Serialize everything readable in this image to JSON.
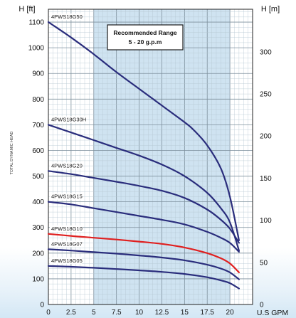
{
  "chart_data": {
    "type": "line",
    "left_axis_unit": "H [ft]",
    "right_axis_unit": "H [m]",
    "x_axis_unit": "U.S GPM",
    "ylabel": "TOTAL DYNAMIC HEAD",
    "xlim": [
      0,
      22.5
    ],
    "ylim_ft": [
      0,
      1150
    ],
    "ylim_m": [
      0,
      350.52
    ],
    "x_ticks": [
      0,
      2.5,
      5,
      7.5,
      10,
      12.5,
      15,
      17.5,
      20
    ],
    "x_tick_labels": [
      "0",
      "2.5",
      "5",
      "7.5",
      "10",
      "12.5",
      "15",
      "17.5",
      "20"
    ],
    "y_ticks_ft": [
      0,
      100,
      200,
      300,
      400,
      500,
      600,
      700,
      800,
      900,
      1000,
      1100
    ],
    "y_tick_labels_ft": [
      "0",
      "100",
      "200",
      "300",
      "400",
      "500",
      "600",
      "700",
      "800",
      "900",
      "1000",
      "1100"
    ],
    "y_ticks_m": [
      0,
      50,
      100,
      150,
      200,
      250,
      300
    ],
    "y_tick_labels_m": [
      "0",
      "50",
      "100",
      "150",
      "200",
      "250",
      "300"
    ],
    "recommended_range": {
      "x_from": 5,
      "x_to": 20,
      "label_line1": "Recommended Range",
      "label_line2": "5 - 20 g.p.m"
    },
    "grid": true,
    "series": [
      {
        "name": "4PWS18G50",
        "color": "#2a2d7c",
        "x": [
          0,
          2.5,
          5,
          7.5,
          10,
          12.5,
          15,
          16,
          17.5,
          19,
          20,
          21
        ],
        "y": [
          1100,
          1040,
          975,
          905,
          840,
          775,
          710,
          680,
          620,
          530,
          420,
          250
        ]
      },
      {
        "name": "4PWS18G30H",
        "color": "#2a2d7c",
        "x": [
          0,
          2.5,
          5,
          7.5,
          10,
          12.5,
          15,
          17.5,
          19,
          20,
          21
        ],
        "y": [
          700,
          670,
          640,
          610,
          580,
          545,
          500,
          435,
          375,
          320,
          210
        ]
      },
      {
        "name": "4PWS18G20",
        "color": "#2a2d7c",
        "x": [
          0,
          2.5,
          5,
          7.5,
          10,
          12.5,
          15,
          17.5,
          19,
          20,
          21
        ],
        "y": [
          520,
          508,
          493,
          478,
          462,
          443,
          415,
          370,
          330,
          295,
          240
        ]
      },
      {
        "name": "4PWS18G15",
        "color": "#2a2d7c",
        "x": [
          0,
          2.5,
          5,
          7.5,
          10,
          12.5,
          15,
          17.5,
          19,
          20,
          21
        ],
        "y": [
          400,
          390,
          375,
          360,
          345,
          330,
          312,
          283,
          260,
          240,
          205
        ]
      },
      {
        "name": "4PWS18G10",
        "color": "#e02020",
        "x": [
          0,
          2.5,
          5,
          7.5,
          10,
          12.5,
          15,
          17.5,
          19,
          20,
          21
        ],
        "y": [
          275,
          267,
          260,
          253,
          245,
          236,
          222,
          200,
          180,
          160,
          125
        ]
      },
      {
        "name": "4PWS18G07",
        "color": "#2a2d7c",
        "x": [
          0,
          2.5,
          5,
          7.5,
          10,
          12.5,
          15,
          17.5,
          19,
          20,
          21
        ],
        "y": [
          215,
          210,
          204,
          198,
          191,
          183,
          172,
          155,
          140,
          125,
          98
        ]
      },
      {
        "name": "4PWS18G05",
        "color": "#2a2d7c",
        "x": [
          0,
          2.5,
          5,
          7.5,
          10,
          12.5,
          15,
          17.5,
          19,
          20,
          21
        ],
        "y": [
          150,
          147,
          143,
          138,
          133,
          127,
          119,
          106,
          94,
          83,
          62
        ]
      }
    ]
  }
}
